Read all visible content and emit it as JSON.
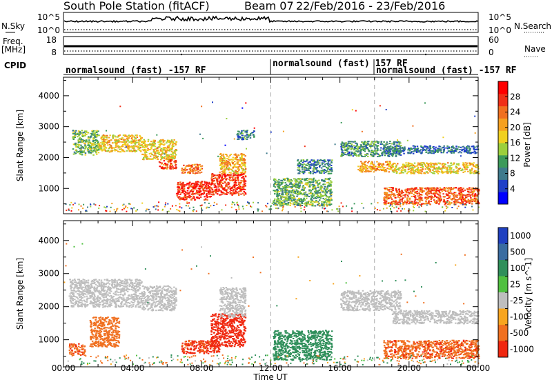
{
  "title": {
    "station": "South Pole Station (fitACF)",
    "beam": "Beam 07",
    "dates": "22/Feb/2016 - 23/Feb/2016"
  },
  "header_panels": {
    "nsky_label": "N.Sky",
    "nsky_ticks": [
      "10^5",
      "10^0"
    ],
    "nsearch_label": "N.Search",
    "nsearch_ticks": [
      "10^5",
      "10^0"
    ],
    "freq_label_1": "Freq.",
    "freq_label_2": "[MHz]",
    "freq_ticks": [
      "18",
      "8"
    ],
    "nave_label": "Nave",
    "nave_ticks": [
      "60",
      "0"
    ],
    "cpid_label": "CPID",
    "cpid_segments": [
      {
        "label": "normalsound (fast) -157 RF",
        "start_hour": 0
      },
      {
        "label": "normalsound (fast) 157 RF",
        "start_hour": 12
      },
      {
        "label": "normalsound (fast) -157 RF",
        "start_hour": 18
      }
    ]
  },
  "power_colorbar": {
    "label": "Power [dB]",
    "ticks": [
      "28",
      "24",
      "20",
      "16",
      "12",
      "8",
      "4"
    ],
    "colors": [
      "#0000ff",
      "#2040c8",
      "#3e7a8c",
      "#3c9a5a",
      "#9bcf3c",
      "#f0d020",
      "#f5a020",
      "#f07020",
      "#f03018",
      "#ff0000"
    ]
  },
  "velocity_colorbar": {
    "label": "Velocity [m s^-1]",
    "ticks": [
      "1000",
      "500",
      "100",
      "25",
      "-25",
      "-100",
      "-500",
      "-1000"
    ],
    "colors": [
      "#2040c0",
      "#3a6ca0",
      "#2f8f5a",
      "#50c040",
      "#bebebe",
      "#f7a520",
      "#f07020",
      "#f02810"
    ]
  },
  "x_axis": {
    "label": "Time UT",
    "ticks": [
      "00:00",
      "04:00",
      "08:00",
      "12:00",
      "16:00",
      "20:00",
      "00:00"
    ]
  },
  "chart_data": [
    {
      "type": "heatmap",
      "name": "Power",
      "ylabel": "Slant Range [km]",
      "xlim": [
        0,
        24
      ],
      "ylim": [
        180,
        4600
      ],
      "yticks": [
        1000,
        2000,
        3000,
        4000
      ],
      "dashed_lines_hours": [
        12,
        18
      ],
      "colorbar_range": [
        0,
        32
      ],
      "regions": [
        {
          "hours": [
            0.5,
            2.0
          ],
          "range_km": [
            2100,
            2900
          ],
          "value": 13
        },
        {
          "hours": [
            2.0,
            4.5
          ],
          "range_km": [
            2200,
            2750
          ],
          "value": 19
        },
        {
          "hours": [
            4.5,
            6.5
          ],
          "range_km": [
            1950,
            2600
          ],
          "value": 18
        },
        {
          "hours": [
            5.5,
            6.5
          ],
          "range_km": [
            1650,
            1950
          ],
          "value": 26
        },
        {
          "hours": [
            6.8,
            8.0
          ],
          "range_km": [
            1500,
            1800
          ],
          "value": 24
        },
        {
          "hours": [
            6.5,
            8.5
          ],
          "range_km": [
            650,
            1250
          ],
          "value": 28
        },
        {
          "hours": [
            8.5,
            10.5
          ],
          "range_km": [
            800,
            1500
          ],
          "value": 27
        },
        {
          "hours": [
            9.0,
            10.5
          ],
          "range_km": [
            1500,
            2150
          ],
          "value": 20
        },
        {
          "hours": [
            10.0,
            11.0
          ],
          "range_km": [
            2600,
            2900
          ],
          "value": 9
        },
        {
          "hours": [
            12.1,
            15.5
          ],
          "range_km": [
            450,
            1350
          ],
          "value": 12
        },
        {
          "hours": [
            13.5,
            15.5
          ],
          "range_km": [
            1500,
            1950
          ],
          "value": 9
        },
        {
          "hours": [
            16.0,
            19.5
          ],
          "range_km": [
            2050,
            2550
          ],
          "value": 10
        },
        {
          "hours": [
            17.0,
            19.0
          ],
          "range_km": [
            1550,
            1900
          ],
          "value": 21
        },
        {
          "hours": [
            19.0,
            24.0
          ],
          "range_km": [
            1500,
            1850
          ],
          "value": 18
        },
        {
          "hours": [
            18.5,
            24.0
          ],
          "range_km": [
            2150,
            2400
          ],
          "value": 8
        },
        {
          "hours": [
            18.5,
            24.0
          ],
          "range_km": [
            500,
            1050
          ],
          "value": 25
        }
      ]
    },
    {
      "type": "heatmap",
      "name": "Velocity",
      "ylabel": "Slant Range [km]",
      "xlim": [
        0,
        24
      ],
      "ylim": [
        180,
        4600
      ],
      "yticks": [
        1000,
        2000,
        3000,
        4000
      ],
      "dashed_lines_hours": [
        12,
        18
      ],
      "regions": [
        {
          "hours": [
            0.3,
            4.5
          ],
          "range_km": [
            2000,
            2850
          ],
          "value": 0
        },
        {
          "hours": [
            4.5,
            6.5
          ],
          "range_km": [
            1900,
            2650
          ],
          "value": 0
        },
        {
          "hours": [
            0.3,
            1.2
          ],
          "range_km": [
            550,
            900
          ],
          "value": -400
        },
        {
          "hours": [
            1.5,
            3.2
          ],
          "range_km": [
            800,
            1700
          ],
          "value": -300
        },
        {
          "hours": [
            6.8,
            9.0
          ],
          "range_km": [
            600,
            1000
          ],
          "value": -600
        },
        {
          "hours": [
            8.5,
            10.5
          ],
          "range_km": [
            800,
            1800
          ],
          "value": -1000
        },
        {
          "hours": [
            9.0,
            10.5
          ],
          "range_km": [
            1700,
            2600
          ],
          "value": 0
        },
        {
          "hours": [
            12.1,
            15.5
          ],
          "range_km": [
            400,
            1300
          ],
          "value": 300
        },
        {
          "hours": [
            16.0,
            19.5
          ],
          "range_km": [
            1900,
            2500
          ],
          "value": 0
        },
        {
          "hours": [
            19.0,
            24.0
          ],
          "range_km": [
            1500,
            1900
          ],
          "value": 0
        },
        {
          "hours": [
            18.5,
            24.0
          ],
          "range_km": [
            450,
            1000
          ],
          "value": -400
        }
      ]
    }
  ]
}
